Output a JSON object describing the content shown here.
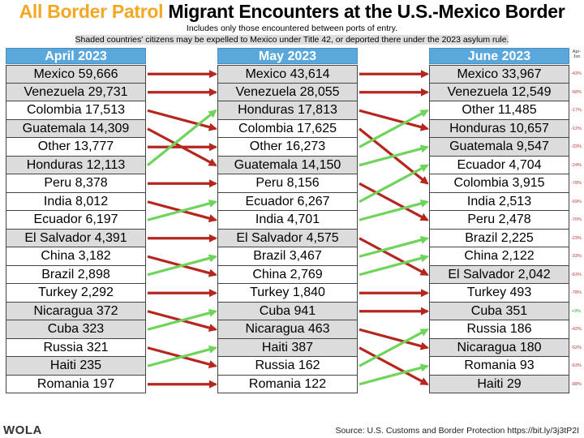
{
  "title": {
    "part1": "All Border Patrol",
    "part2": "Migrant Encounters at the U.S.-Mexico Border"
  },
  "subtitle1": "Includes only those encountered between ports of entry.",
  "subtitle2": "Shaded countries' citizens may be expelled to Mexico under Title 42, or deported there under the 2023 asylum rule.",
  "pct_header": "Apr-Jun",
  "colors": {
    "header": "#5aa7dc",
    "shaded": "#dcdcdc",
    "up_arrow": "#6ed45a",
    "down_arrow": "#b5261e",
    "title_accent": "#f5a623"
  },
  "chart_data": {
    "type": "table",
    "columns": [
      {
        "header": "April 2023",
        "rows": [
          {
            "country": "Mexico",
            "value": "59,666",
            "shaded": true
          },
          {
            "country": "Venezuela",
            "value": "29,731",
            "shaded": true
          },
          {
            "country": "Colombia",
            "value": "17,513",
            "shaded": false
          },
          {
            "country": "Guatemala",
            "value": "14,309",
            "shaded": true
          },
          {
            "country": "Other",
            "value": "13,777",
            "shaded": false
          },
          {
            "country": "Honduras",
            "value": "12,113",
            "shaded": true
          },
          {
            "country": "Peru",
            "value": "8,378",
            "shaded": false
          },
          {
            "country": "India",
            "value": "8,012",
            "shaded": false
          },
          {
            "country": "Ecuador",
            "value": "6,197",
            "shaded": false
          },
          {
            "country": "El Salvador",
            "value": "4,391",
            "shaded": true
          },
          {
            "country": "China",
            "value": "3,182",
            "shaded": false
          },
          {
            "country": "Brazil",
            "value": "2,898",
            "shaded": false
          },
          {
            "country": "Turkey",
            "value": "2,292",
            "shaded": false
          },
          {
            "country": "Nicaragua",
            "value": "372",
            "shaded": true
          },
          {
            "country": "Cuba",
            "value": "323",
            "shaded": true
          },
          {
            "country": "Russia",
            "value": "321",
            "shaded": false
          },
          {
            "country": "Haiti",
            "value": "235",
            "shaded": true
          },
          {
            "country": "Romania",
            "value": "197",
            "shaded": false
          }
        ]
      },
      {
        "header": "May 2023",
        "rows": [
          {
            "country": "Mexico",
            "value": "43,614",
            "shaded": true
          },
          {
            "country": "Venezuela",
            "value": "28,055",
            "shaded": true
          },
          {
            "country": "Honduras",
            "value": "17,813",
            "shaded": true
          },
          {
            "country": "Colombia",
            "value": "17,625",
            "shaded": false
          },
          {
            "country": "Other",
            "value": "16,273",
            "shaded": false
          },
          {
            "country": "Guatemala",
            "value": "14,150",
            "shaded": true
          },
          {
            "country": "Peru",
            "value": "8,156",
            "shaded": false
          },
          {
            "country": "Ecuador",
            "value": "6,267",
            "shaded": false
          },
          {
            "country": "India",
            "value": "4,701",
            "shaded": false
          },
          {
            "country": "El Salvador",
            "value": "4,575",
            "shaded": true
          },
          {
            "country": "Brazil",
            "value": "3,467",
            "shaded": false
          },
          {
            "country": "China",
            "value": "2,769",
            "shaded": false
          },
          {
            "country": "Turkey",
            "value": "1,840",
            "shaded": false
          },
          {
            "country": "Cuba",
            "value": "941",
            "shaded": true
          },
          {
            "country": "Nicaragua",
            "value": "463",
            "shaded": true
          },
          {
            "country": "Haiti",
            "value": "387",
            "shaded": true
          },
          {
            "country": "Russia",
            "value": "162",
            "shaded": false
          },
          {
            "country": "Romania",
            "value": "122",
            "shaded": false
          }
        ]
      },
      {
        "header": "June 2023",
        "rows": [
          {
            "country": "Mexico",
            "value": "33,967",
            "shaded": true,
            "change": "-43%"
          },
          {
            "country": "Venezuela",
            "value": "12,549",
            "shaded": true,
            "change": "-58%"
          },
          {
            "country": "Other",
            "value": "11,485",
            "shaded": false,
            "change": "-17%"
          },
          {
            "country": "Honduras",
            "value": "10,657",
            "shaded": true,
            "change": "-12%"
          },
          {
            "country": "Guatemala",
            "value": "9,547",
            "shaded": true,
            "change": "-33%"
          },
          {
            "country": "Ecuador",
            "value": "4,704",
            "shaded": false,
            "change": "-24%"
          },
          {
            "country": "Colombia",
            "value": "3,915",
            "shaded": false,
            "change": "-78%"
          },
          {
            "country": "India",
            "value": "2,513",
            "shaded": false,
            "change": "-69%"
          },
          {
            "country": "Peru",
            "value": "2,478",
            "shaded": false,
            "change": "-70%"
          },
          {
            "country": "Brazil",
            "value": "2,225",
            "shaded": false,
            "change": "-23%"
          },
          {
            "country": "China",
            "value": "2,122",
            "shaded": false,
            "change": "-33%"
          },
          {
            "country": "El Salvador",
            "value": "2,042",
            "shaded": true,
            "change": "-53%"
          },
          {
            "country": "Turkey",
            "value": "493",
            "shaded": false,
            "change": "-78%"
          },
          {
            "country": "Cuba",
            "value": "351",
            "shaded": true,
            "change": "+9%"
          },
          {
            "country": "Russia",
            "value": "186",
            "shaded": false,
            "change": "-42%"
          },
          {
            "country": "Nicaragua",
            "value": "180",
            "shaded": true,
            "change": "-52%"
          },
          {
            "country": "Romania",
            "value": "93",
            "shaded": false,
            "change": "-53%"
          },
          {
            "country": "Haiti",
            "value": "29",
            "shaded": true,
            "change": "-88%"
          }
        ]
      }
    ]
  },
  "logo": "WOLA",
  "source": "Source: U.S. Customs and Border Protection https://bit.ly/3j3tP2I"
}
